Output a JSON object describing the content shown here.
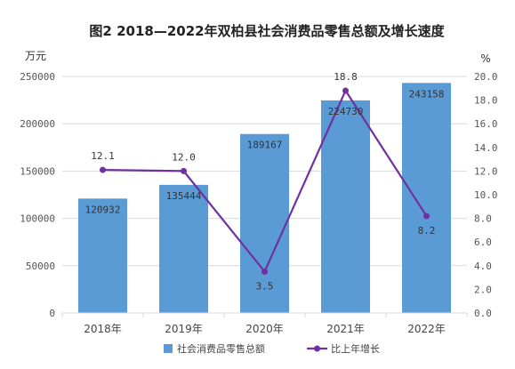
{
  "chart_data": {
    "type": "bar",
    "title": "图2  2018—2022年双柏县社会消费品零售总额及增长速度",
    "y_left_unit": "万元",
    "y_right_unit": "%",
    "categories": [
      "2018年",
      "2019年",
      "2020年",
      "2021年",
      "2022年"
    ],
    "series": [
      {
        "name": "社会消费品零售总额",
        "type": "bar",
        "axis": "left",
        "values": [
          120932,
          135444,
          189167,
          224730,
          243158
        ],
        "labels": [
          "120932",
          "135444",
          "189167",
          "224730",
          "243158"
        ],
        "color": "#5b9bd5"
      },
      {
        "name": "比上年增长",
        "type": "line",
        "axis": "right",
        "values": [
          12.1,
          12.0,
          3.5,
          18.8,
          8.2
        ],
        "labels": [
          "12.1",
          "12.0",
          "3.5",
          "18.8",
          "8.2"
        ],
        "color": "#7030a0"
      }
    ],
    "y_left": {
      "min": 0,
      "max": 250000,
      "ticks": [
        "0",
        "50000",
        "100000",
        "150000",
        "200000",
        "250000"
      ]
    },
    "y_right": {
      "min": 0,
      "max": 20,
      "ticks": [
        "0.0",
        "2.0",
        "4.0",
        "6.0",
        "8.0",
        "10.0",
        "12.0",
        "14.0",
        "16.0",
        "18.0",
        "20.0"
      ]
    },
    "grid": true,
    "legend_position": "bottom",
    "axis_color": "#d9d9d9"
  }
}
